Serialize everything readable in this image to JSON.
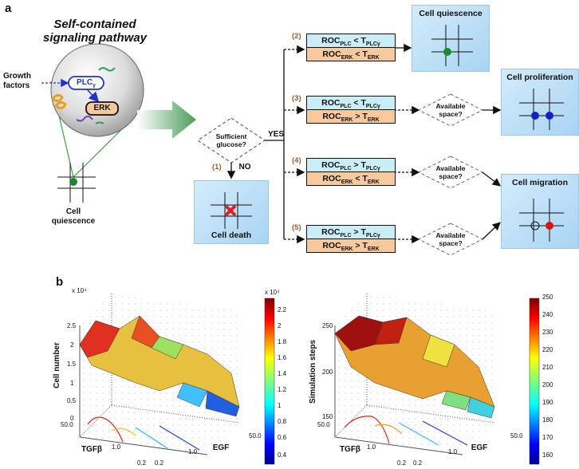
{
  "panel_a": {
    "label": "a",
    "pathway_title": "Self-contained signaling pathway",
    "growth_factors": "Growth factors",
    "plc": "PLC",
    "plc_sub": "γ",
    "erk": "ERK",
    "cell_quiescence_left": "Cell quiescence",
    "decision": "Sufficient glucose?",
    "yes": "YES",
    "no": "NO",
    "cell_death": "Cell death",
    "available_space": "Available space?",
    "branches": [
      {
        "num": "(1)"
      },
      {
        "num": "(2)",
        "top": "ROC",
        "top_sub": "PLC",
        "top_op": " < T",
        "top_sub2": "PLCγ",
        "bot": "ROC",
        "bot_sub": "ERK",
        "bot_op": " < T",
        "bot_sub2": "ERK"
      },
      {
        "num": "(3)",
        "top": "ROC",
        "top_sub": "PLC",
        "top_op": " < T",
        "top_sub2": "PLCγ",
        "bot": "ROC",
        "bot_sub": "ERK",
        "bot_op": " > T",
        "bot_sub2": "ERK"
      },
      {
        "num": "(4)",
        "top": "ROC",
        "top_sub": "PLC",
        "top_op": " > T",
        "top_sub2": "PLCγ",
        "bot": "ROC",
        "bot_sub": "ERK",
        "bot_op": " < T",
        "bot_sub2": "ERK"
      },
      {
        "num": "(5)",
        "top": "ROC",
        "top_sub": "PLC",
        "top_op": " > T",
        "top_sub2": "PLCγ",
        "bot": "ROC",
        "bot_sub": "ERK",
        "bot_op": " > T",
        "bot_sub2": "ERK"
      }
    ],
    "outcomes": {
      "quiescence": "Cell quiescence",
      "proliferation": "Cell proliferation",
      "migration": "Cell migration"
    }
  },
  "panel_b": {
    "label": "b",
    "left": {
      "zlabel": "Cell number",
      "zscale": "x 10⁴",
      "zticks": [
        "2.5",
        "2",
        "1.5",
        "1",
        "0.5",
        "0"
      ],
      "tgf_label": "TGFβ",
      "egf_label": "EGF",
      "tgf_ticks": [
        "50.0",
        "1.0",
        "0.2"
      ],
      "egf_ticks": [
        "0.2",
        "1.0",
        "50.0"
      ],
      "colorbar_scale": "x 10⁴",
      "colorbar_ticks": [
        "2.2",
        "2",
        "1.8",
        "1.6",
        "1.4",
        "1.2",
        "1",
        "0.8",
        "0.6",
        "0.4"
      ]
    },
    "right": {
      "zlabel": "Simulation steps",
      "zticks": [
        "250",
        "200",
        "150"
      ],
      "tgf_label": "TGFβ",
      "egf_label": "EGF",
      "tgf_ticks": [
        "50.0",
        "1.0",
        "0.2"
      ],
      "egf_ticks": [
        "0.2",
        "1.0",
        "50.0"
      ],
      "colorbar_ticks": [
        "250",
        "240",
        "230",
        "220",
        "210",
        "200",
        "190",
        "180",
        "170",
        "160"
      ]
    }
  },
  "colors": {
    "roc_top": "#c9eef5",
    "roc_bottom": "#f7c99c",
    "outcome_box": "#bfe0f7",
    "green_cell": "#1a8a2a",
    "blue_cell": "#1020d0",
    "red_cell": "#e01010"
  }
}
